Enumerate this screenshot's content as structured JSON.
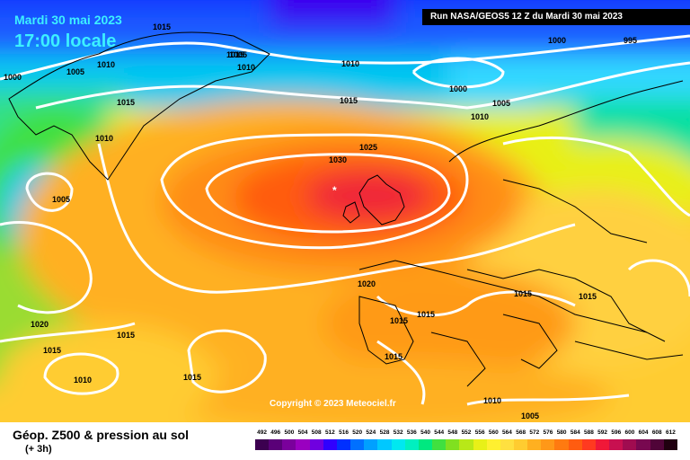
{
  "header": {
    "date_label": "Mardi 30 mai 2023",
    "time_label": "17:00 locale",
    "run_label": "Run NASA/GEOS5 12 Z du Mardi 30 mai 2023"
  },
  "map": {
    "isobar_labels": [
      "1015",
      "1005",
      "1010",
      "1000",
      "1005",
      "1015",
      "1010",
      "1010",
      "1015",
      "1010",
      "1000",
      "995",
      "1000",
      "1010",
      "1005",
      "1015",
      "1025",
      "1030",
      "1005",
      "1020",
      "1015",
      "1015",
      "1015",
      "1015",
      "1020",
      "1015",
      "1015",
      "1015",
      "1010",
      "1010",
      "1015",
      "1005"
    ],
    "high_marker": "*"
  },
  "copyright": "Copyright © 2023 Meteociel.fr",
  "legend": {
    "title": "Géop. Z500 & pression au sol",
    "subtitle": "(+ 3h)",
    "scale_values": [
      "492",
      "496",
      "500",
      "504",
      "508",
      "512",
      "516",
      "520",
      "524",
      "528",
      "532",
      "536",
      "540",
      "544",
      "548",
      "552",
      "556",
      "560",
      "564",
      "568",
      "572",
      "576",
      "580",
      "584",
      "588",
      "592",
      "596",
      "600",
      "604",
      "608",
      "612"
    ],
    "scale_colors": [
      "#3c0050",
      "#5a0078",
      "#7a009c",
      "#9a00c0",
      "#7000e0",
      "#3000ff",
      "#0030ff",
      "#0070ff",
      "#00a0ff",
      "#00c8ff",
      "#00e8f0",
      "#00f0c0",
      "#00e880",
      "#40e040",
      "#80e020",
      "#b8e818",
      "#e8f018",
      "#fff030",
      "#ffe040",
      "#ffcc30",
      "#ffb020",
      "#ff9818",
      "#ff7a10",
      "#ff5c10",
      "#ff3a20",
      "#f01838",
      "#c81050",
      "#a00c50",
      "#780850",
      "#500438",
      "#200010"
    ]
  }
}
